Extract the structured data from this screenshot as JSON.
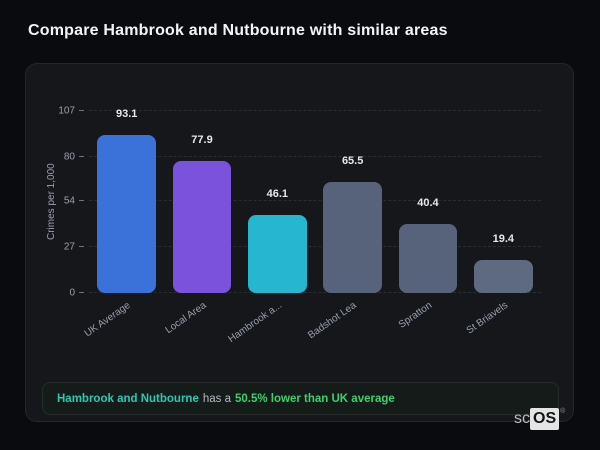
{
  "page": {
    "title": "Compare Hambrook and Nutbourne with similar areas"
  },
  "chart_data": {
    "type": "bar",
    "title": "Compare Hambrook and Nutbourne with similar areas",
    "ylabel": "Crimes per 1,000",
    "xlabel": "",
    "ylim": [
      0,
      107
    ],
    "yticks": [
      0,
      27,
      54,
      80,
      107
    ],
    "grid": "horizontal-dashed",
    "legend": "none",
    "categories": [
      "UK Average",
      "Local Area",
      "Hambrook a...",
      "Badshot Lea",
      "Spratton",
      "St Briavels"
    ],
    "values": [
      93.1,
      77.9,
      46.1,
      65.5,
      40.4,
      19.4
    ],
    "bar_colors": [
      "#3b72d9",
      "#7a52dc",
      "#27b6cf",
      "#57637a",
      "#57637a",
      "#5d6a80"
    ]
  },
  "footer": {
    "area_name": "Hambrook and Nutbourne",
    "connector": "has a",
    "stat": "50.5% lower than UK average",
    "area_color": "#2cc8b0",
    "stat_color": "#3fcf6e"
  },
  "logo": {
    "prefix": "sc",
    "suffix": "OS",
    "registered": "®"
  },
  "colors": {
    "page_bg": "#0a0b0e",
    "card_bg": "#15171b",
    "card_border": "#23262c",
    "title_text": "#f2f4f7",
    "axis_text": "#9aa1ab",
    "value_label_text": "#e4e7ec"
  }
}
